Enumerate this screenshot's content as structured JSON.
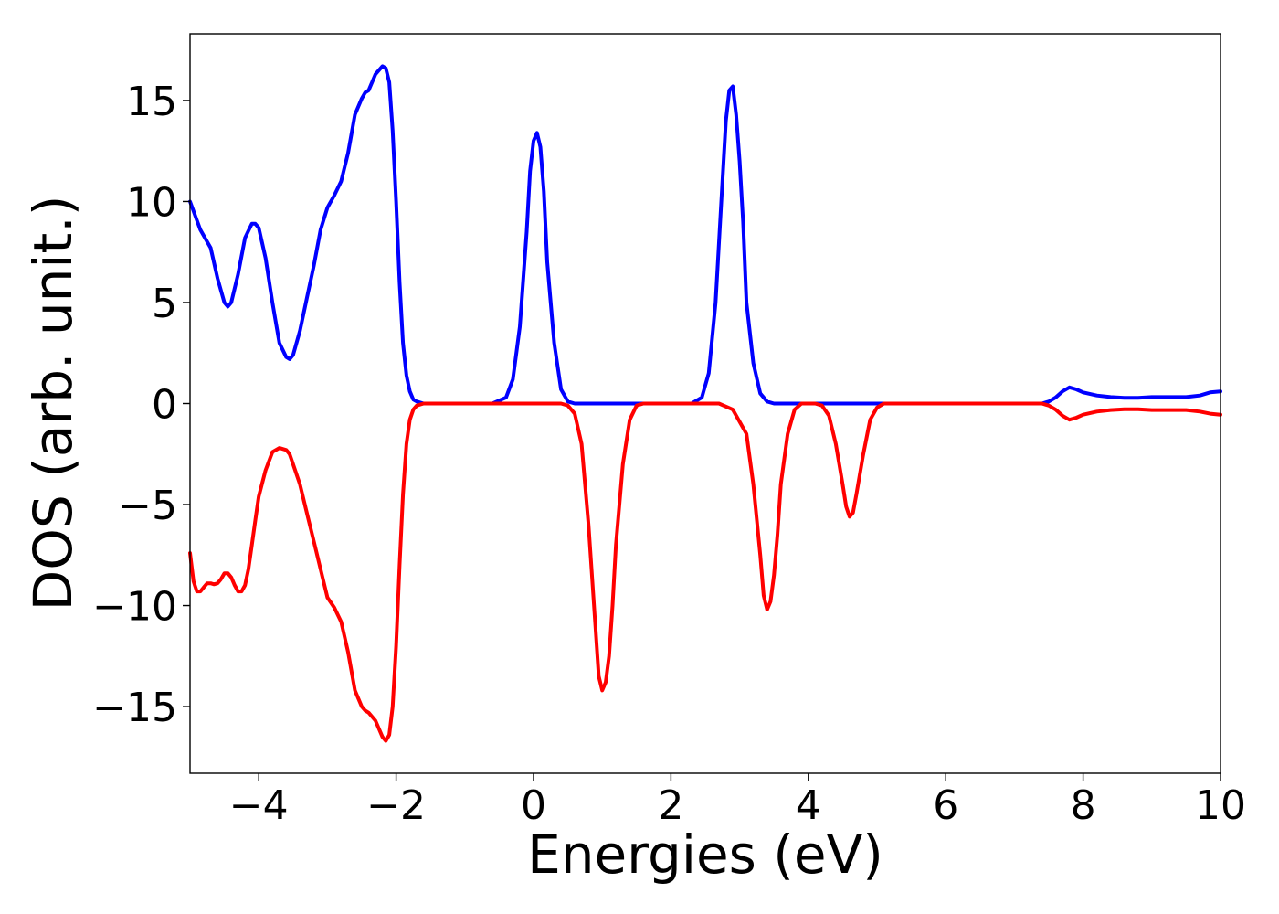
{
  "chart_data": {
    "type": "line",
    "title": "",
    "xlabel": "Energies (eV)",
    "ylabel": "DOS (arb. unit.)",
    "xlim": [
      -5,
      10
    ],
    "ylim": [
      -18.3,
      18.3
    ],
    "xticks": [
      -4,
      -2,
      0,
      2,
      4,
      6,
      8,
      10
    ],
    "xtick_labels": [
      "−4",
      "−2",
      "0",
      "2",
      "4",
      "6",
      "8",
      "10"
    ],
    "yticks": [
      -15,
      -10,
      -5,
      0,
      5,
      10,
      15
    ],
    "ytick_labels": [
      "−15",
      "−10",
      "−5",
      "0",
      "5",
      "10",
      "15"
    ],
    "grid": false,
    "legend": "none",
    "series": [
      {
        "color": "#0000ff",
        "x": [
          -5.0,
          -4.85,
          -4.7,
          -4.6,
          -4.5,
          -4.45,
          -4.4,
          -4.3,
          -4.2,
          -4.1,
          -4.05,
          -4.0,
          -3.9,
          -3.8,
          -3.7,
          -3.6,
          -3.55,
          -3.5,
          -3.4,
          -3.3,
          -3.2,
          -3.1,
          -3.0,
          -2.9,
          -2.8,
          -2.7,
          -2.6,
          -2.5,
          -2.45,
          -2.4,
          -2.3,
          -2.2,
          -2.15,
          -2.1,
          -2.05,
          -2.0,
          -1.95,
          -1.9,
          -1.85,
          -1.8,
          -1.75,
          -1.7,
          -1.6,
          -1.5,
          -1.4,
          -0.6,
          -0.4,
          -0.3,
          -0.2,
          -0.1,
          -0.05,
          0.0,
          0.05,
          0.1,
          0.15,
          0.2,
          0.3,
          0.4,
          0.5,
          0.6,
          0.7,
          0.8,
          2.3,
          2.45,
          2.55,
          2.65,
          2.75,
          2.8,
          2.85,
          2.9,
          2.95,
          3.0,
          3.05,
          3.1,
          3.2,
          3.3,
          3.4,
          3.5,
          3.6,
          7.4,
          7.5,
          7.6,
          7.7,
          7.8,
          7.9,
          8.0,
          8.2,
          8.4,
          8.6,
          8.8,
          9.0,
          9.2,
          9.5,
          9.7,
          9.85,
          10.0
        ],
        "values": [
          10.0,
          8.6,
          7.7,
          6.2,
          5.0,
          4.8,
          5.0,
          6.4,
          8.2,
          8.9,
          8.9,
          8.7,
          7.2,
          5.0,
          3.0,
          2.3,
          2.2,
          2.4,
          3.6,
          5.2,
          6.8,
          8.6,
          9.7,
          10.3,
          11.0,
          12.4,
          14.3,
          15.1,
          15.4,
          15.5,
          16.3,
          16.7,
          16.6,
          15.9,
          13.5,
          10.0,
          6.0,
          3.0,
          1.4,
          0.6,
          0.2,
          0.1,
          0.0,
          0.0,
          0.0,
          0.0,
          0.3,
          1.2,
          3.8,
          8.5,
          11.5,
          13.0,
          13.4,
          12.7,
          10.5,
          7.0,
          3.0,
          0.7,
          0.1,
          0.0,
          0.0,
          0.0,
          0.0,
          0.3,
          1.5,
          5.0,
          11.0,
          14.0,
          15.5,
          15.7,
          14.3,
          12.0,
          9.0,
          5.0,
          2.0,
          0.5,
          0.1,
          0.0,
          0.0,
          0.0,
          0.1,
          0.3,
          0.6,
          0.8,
          0.7,
          0.55,
          0.4,
          0.32,
          0.28,
          0.28,
          0.32,
          0.32,
          0.32,
          0.4,
          0.55,
          0.6
        ]
      },
      {
        "color": "#ff0000",
        "x": [
          -5.0,
          -4.95,
          -4.9,
          -4.85,
          -4.8,
          -4.75,
          -4.7,
          -4.65,
          -4.6,
          -4.55,
          -4.5,
          -4.45,
          -4.4,
          -4.35,
          -4.3,
          -4.25,
          -4.2,
          -4.15,
          -4.1,
          -4.05,
          -4.0,
          -3.9,
          -3.8,
          -3.7,
          -3.6,
          -3.55,
          -3.5,
          -3.4,
          -3.3,
          -3.2,
          -3.1,
          -3.0,
          -2.9,
          -2.8,
          -2.7,
          -2.6,
          -2.5,
          -2.45,
          -2.4,
          -2.3,
          -2.2,
          -2.15,
          -2.1,
          -2.05,
          -2.0,
          -1.95,
          -1.9,
          -1.85,
          -1.8,
          -1.75,
          -1.7,
          -1.6,
          -1.5,
          -1.4,
          0.4,
          0.5,
          0.6,
          0.7,
          0.8,
          0.9,
          0.95,
          1.0,
          1.05,
          1.1,
          1.15,
          1.2,
          1.3,
          1.4,
          1.5,
          1.6,
          1.7,
          2.7,
          2.9,
          3.1,
          3.2,
          3.3,
          3.35,
          3.4,
          3.45,
          3.5,
          3.55,
          3.6,
          3.7,
          3.8,
          3.9,
          4.0,
          4.1,
          4.2,
          4.3,
          4.4,
          4.5,
          4.55,
          4.6,
          4.65,
          4.7,
          4.8,
          4.9,
          5.0,
          5.1,
          5.2,
          7.4,
          7.5,
          7.6,
          7.7,
          7.8,
          7.9,
          8.0,
          8.2,
          8.4,
          8.6,
          8.8,
          9.0,
          9.2,
          9.5,
          9.7,
          9.85,
          10.0
        ],
        "values": [
          -7.4,
          -8.8,
          -9.3,
          -9.3,
          -9.1,
          -8.9,
          -8.9,
          -8.95,
          -8.9,
          -8.7,
          -8.4,
          -8.4,
          -8.6,
          -9.0,
          -9.3,
          -9.3,
          -9.0,
          -8.2,
          -7.0,
          -5.8,
          -4.6,
          -3.3,
          -2.4,
          -2.2,
          -2.3,
          -2.5,
          -3.0,
          -4.0,
          -5.4,
          -6.8,
          -8.2,
          -9.6,
          -10.1,
          -10.8,
          -12.3,
          -14.2,
          -15.0,
          -15.2,
          -15.3,
          -15.7,
          -16.5,
          -16.7,
          -16.4,
          -15.0,
          -12.0,
          -8.0,
          -4.5,
          -2.0,
          -0.8,
          -0.3,
          -0.1,
          0.0,
          0.0,
          0.0,
          0.0,
          -0.1,
          -0.5,
          -2.0,
          -6.0,
          -11.0,
          -13.5,
          -14.2,
          -13.8,
          -12.5,
          -10.0,
          -7.0,
          -3.0,
          -0.8,
          -0.1,
          0.0,
          0.0,
          0.0,
          -0.3,
          -1.5,
          -4.0,
          -7.5,
          -9.5,
          -10.2,
          -9.8,
          -8.5,
          -6.5,
          -4.0,
          -1.5,
          -0.3,
          0.0,
          0.0,
          0.0,
          -0.1,
          -0.6,
          -2.0,
          -4.0,
          -5.1,
          -5.6,
          -5.4,
          -4.5,
          -2.5,
          -0.8,
          -0.2,
          0.0,
          0.0,
          0.0,
          -0.1,
          -0.3,
          -0.6,
          -0.8,
          -0.7,
          -0.55,
          -0.4,
          -0.32,
          -0.28,
          -0.28,
          -0.32,
          -0.32,
          -0.32,
          -0.4,
          -0.5,
          -0.55
        ]
      }
    ]
  }
}
